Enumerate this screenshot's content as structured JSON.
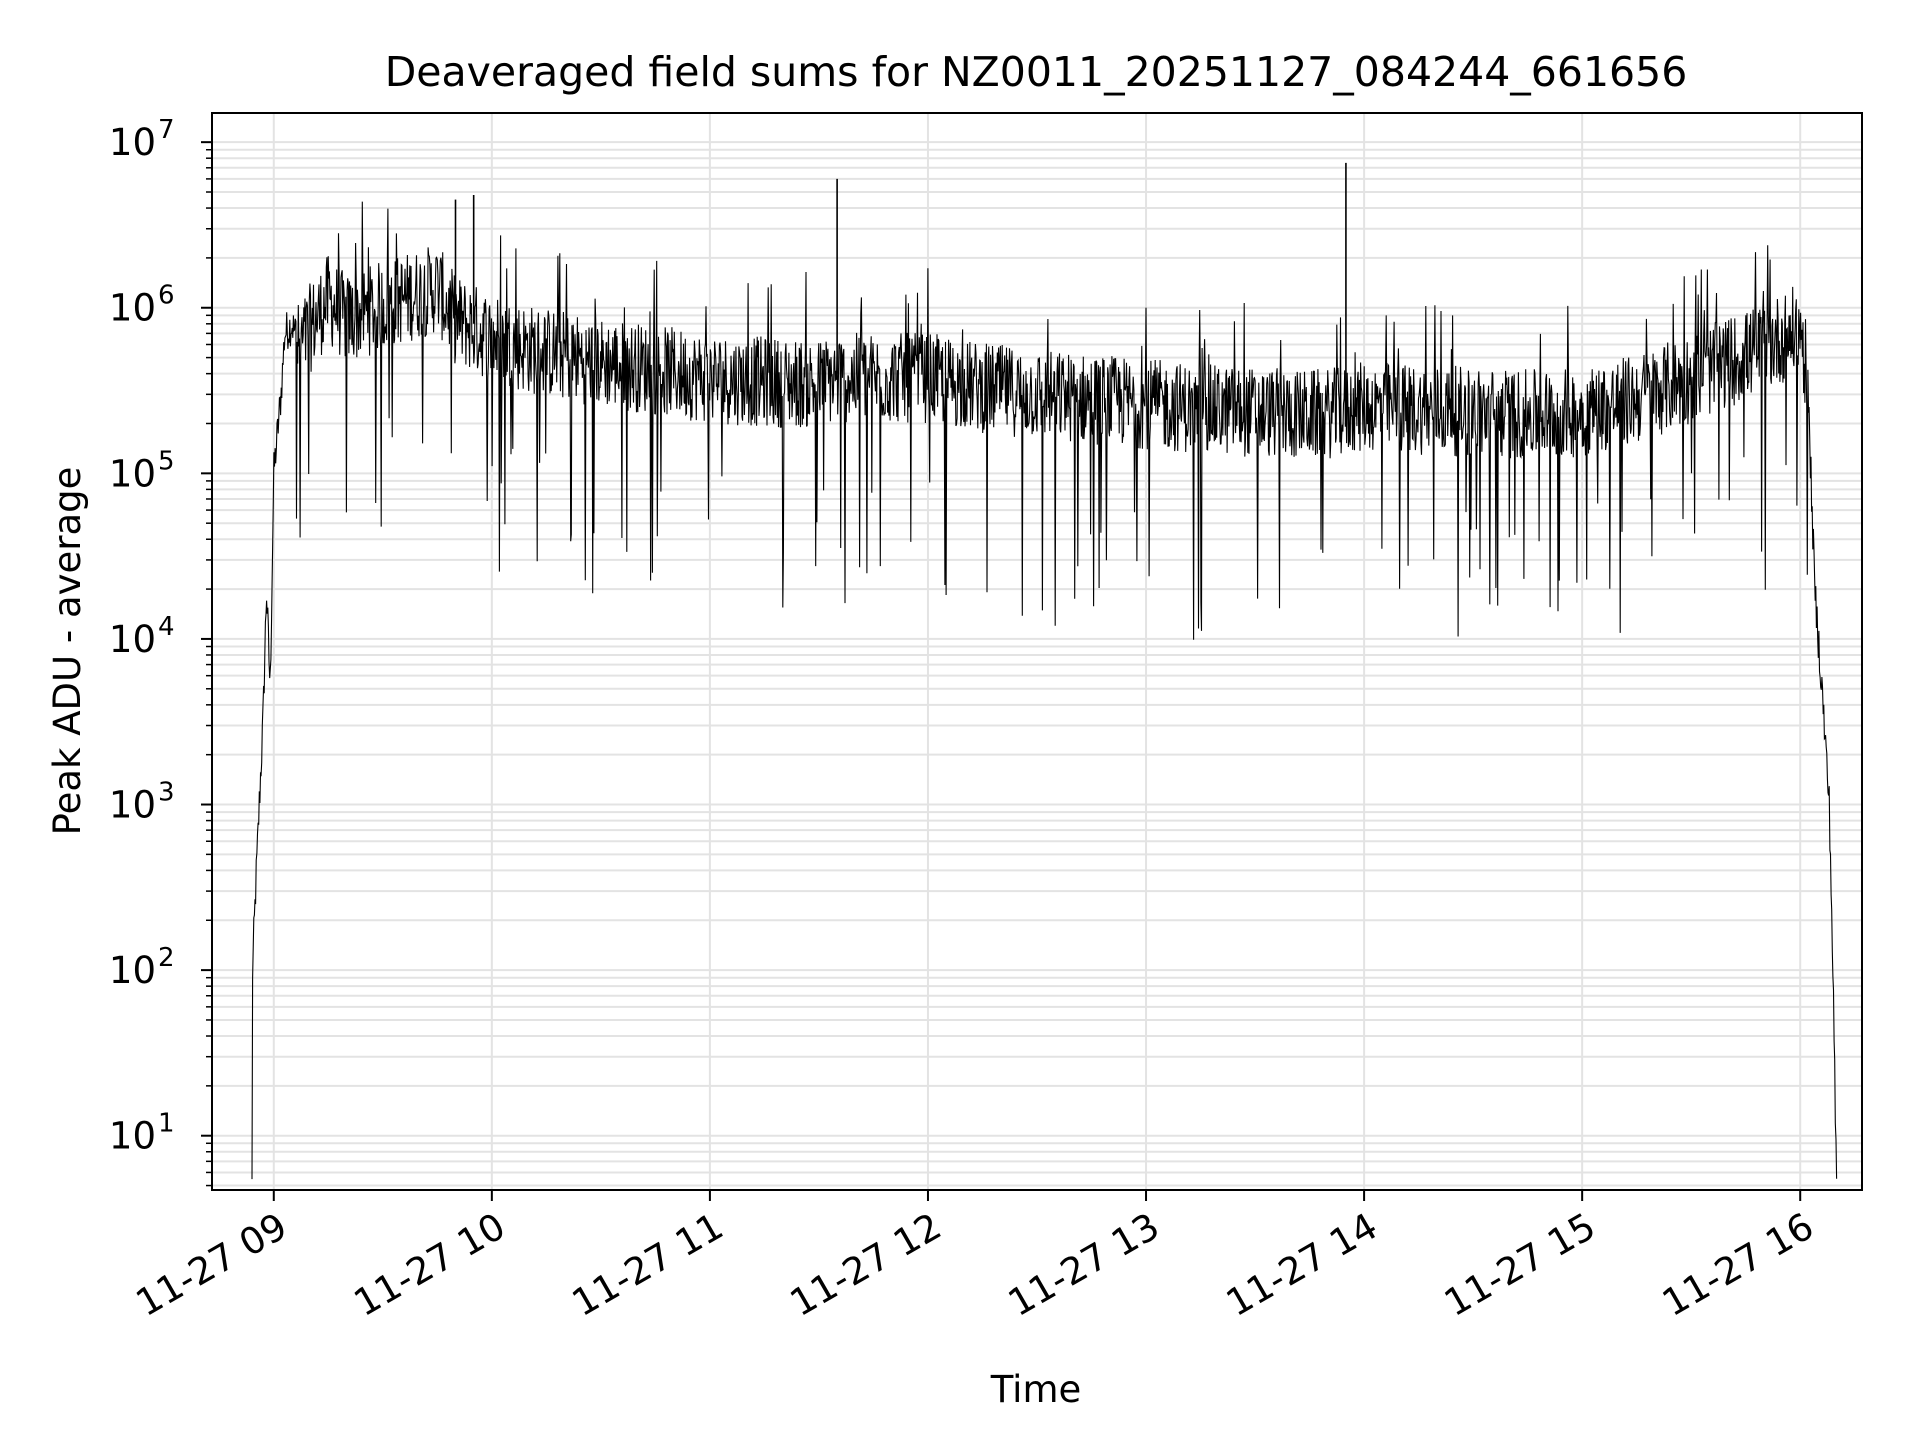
{
  "chart_data": {
    "type": "line",
    "title": "Deaveraged field sums for NZ0011_20251127_084244_661656",
    "xlabel": "Time",
    "ylabel": "Peak ADU - average",
    "y_scale": "log",
    "ylim": [
      4.7,
      15000000
    ],
    "xlim": [
      "2025-11-27 08:43",
      "2025-11-27 16:17"
    ],
    "grid": true,
    "line_color": "#000000",
    "grid_color": "#e3e3e3",
    "x_ticks": [
      {
        "t": "2025-11-27 09:00",
        "label": "11-27 09"
      },
      {
        "t": "2025-11-27 10:00",
        "label": "11-27 10"
      },
      {
        "t": "2025-11-27 11:00",
        "label": "11-27 11"
      },
      {
        "t": "2025-11-27 12:00",
        "label": "11-27 12"
      },
      {
        "t": "2025-11-27 13:00",
        "label": "11-27 13"
      },
      {
        "t": "2025-11-27 14:00",
        "label": "11-27 14"
      },
      {
        "t": "2025-11-27 15:00",
        "label": "11-27 15"
      },
      {
        "t": "2025-11-27 16:00",
        "label": "11-27 16"
      }
    ],
    "y_ticks": [
      {
        "value": 10,
        "base": "10",
        "exp": "1"
      },
      {
        "value": 100,
        "base": "10",
        "exp": "2"
      },
      {
        "value": 1000,
        "base": "10",
        "exp": "3"
      },
      {
        "value": 10000,
        "base": "10",
        "exp": "4"
      },
      {
        "value": 100000,
        "base": "10",
        "exp": "5"
      },
      {
        "value": 1000000,
        "base": "10",
        "exp": "6"
      },
      {
        "value": 10000000,
        "base": "10",
        "exp": "7"
      }
    ],
    "series": [
      {
        "x": [
          "2025-11-27 08:54",
          "2025-11-27 08:54",
          "2025-11-27 08:55",
          "2025-11-27 08:56",
          "2025-11-27 08:57",
          "2025-11-27 08:58",
          "2025-11-27 08:59",
          "2025-11-27 09:00",
          "2025-11-27 09:02",
          "2025-11-27 09:03",
          "2025-11-27 09:05",
          "2025-11-27 09:07",
          "2025-11-27 09:10",
          "2025-11-27 09:15",
          "2025-11-27 09:20",
          "2025-11-27 09:25",
          "2025-11-27 09:30",
          "2025-11-27 09:35",
          "2025-11-27 09:40",
          "2025-11-27 09:45",
          "2025-11-27 09:50",
          "2025-11-27 09:55",
          "2025-11-27 10:00",
          "2025-11-27 10:10",
          "2025-11-27 10:20",
          "2025-11-27 10:30",
          "2025-11-27 10:45",
          "2025-11-27 11:00",
          "2025-11-27 11:15",
          "2025-11-27 11:30",
          "2025-11-27 11:35",
          "2025-11-27 11:45",
          "2025-11-27 12:00",
          "2025-11-27 12:15",
          "2025-11-27 12:30",
          "2025-11-27 12:45",
          "2025-11-27 13:00",
          "2025-11-27 13:15",
          "2025-11-27 13:30",
          "2025-11-27 13:45",
          "2025-11-27 13:55",
          "2025-11-27 14:00",
          "2025-11-27 14:15",
          "2025-11-27 14:30",
          "2025-11-27 14:45",
          "2025-11-27 15:00",
          "2025-11-27 15:15",
          "2025-11-27 15:30",
          "2025-11-27 15:45",
          "2025-11-27 15:55",
          "2025-11-27 16:00",
          "2025-11-27 16:02",
          "2025-11-27 16:04",
          "2025-11-27 16:06",
          "2025-11-27 16:08",
          "2025-11-27 16:09",
          "2025-11-27 16:10"
        ],
        "y": [
          5,
          80,
          300,
          1000,
          3000,
          20000,
          5000,
          100000,
          300000,
          700000,
          800000,
          600000,
          800000,
          1200000,
          900000,
          1000000,
          1100000,
          1200000,
          1300000,
          1400000,
          900000,
          800000,
          700000,
          600000,
          550000,
          500000,
          450000,
          400000,
          380000,
          370000,
          400000,
          400000,
          400000,
          350000,
          320000,
          300000,
          280000,
          260000,
          250000,
          240000,
          250000,
          270000,
          260000,
          250000,
          240000,
          250000,
          300000,
          400000,
          550000,
          700000,
          800000,
          400000,
          20000,
          5000,
          1000,
          100,
          5
        ],
        "spikes": [
          {
            "x": "2025-11-27 11:35",
            "y": 6000000
          },
          {
            "x": "2025-11-27 13:55",
            "y": 7500000
          },
          {
            "x": "2025-11-27 09:55",
            "y": 4800000
          },
          {
            "x": "2025-11-27 09:50",
            "y": 4500000
          }
        ]
      }
    ]
  }
}
